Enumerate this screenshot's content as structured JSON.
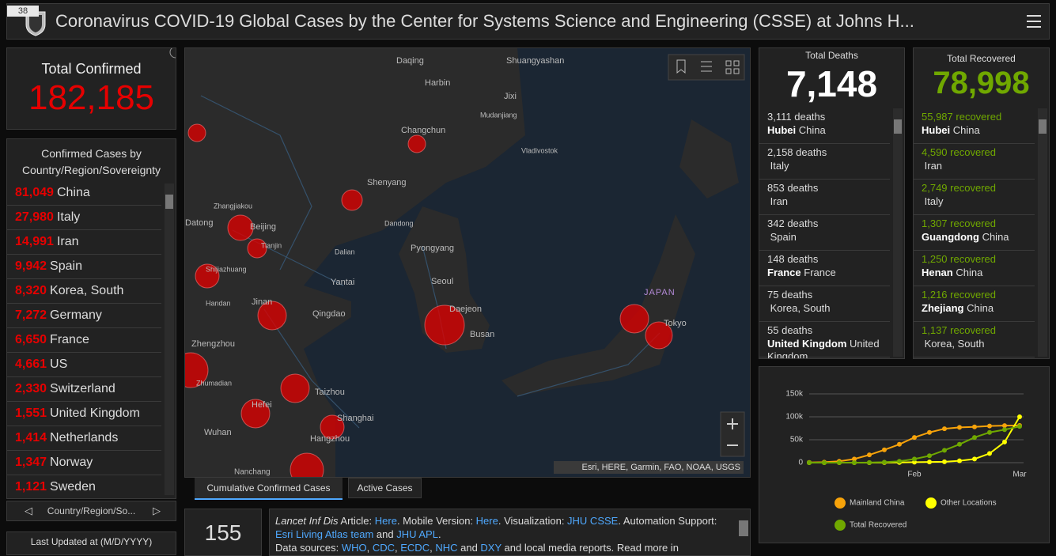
{
  "header": {
    "title": "Coronavirus COVID-19 Global Cases by the Center for Systems Science and Engineering (CSSE) at Johns H...",
    "badge": "38"
  },
  "total_confirmed": {
    "label": "Total Confirmed",
    "value": "182,185"
  },
  "confirmed_list": {
    "title": "Confirmed Cases by Country/Region/Sovereignty",
    "items": [
      {
        "count": "81,049",
        "name": "China"
      },
      {
        "count": "27,980",
        "name": "Italy"
      },
      {
        "count": "14,991",
        "name": "Iran"
      },
      {
        "count": "9,942",
        "name": "Spain"
      },
      {
        "count": "8,320",
        "name": "Korea, South"
      },
      {
        "count": "7,272",
        "name": "Germany"
      },
      {
        "count": "6,650",
        "name": "France"
      },
      {
        "count": "4,661",
        "name": "US"
      },
      {
        "count": "2,330",
        "name": "Switzerland"
      },
      {
        "count": "1,551",
        "name": "United Kingdom"
      },
      {
        "count": "1,414",
        "name": "Netherlands"
      },
      {
        "count": "1,347",
        "name": "Norway"
      },
      {
        "count": "1,121",
        "name": "Sweden"
      }
    ],
    "nav": "Country/Region/So..."
  },
  "last_updated": "Last Updated at (M/D/YYYY)",
  "map": {
    "labels": [
      "Daqing",
      "Shuangyashan",
      "Harbin",
      "Jixi",
      "Mudanjiang",
      "Changchun",
      "Vladivostok",
      "Shenyang",
      "Zhangjiakou",
      "Datong",
      "Beijing",
      "Tianjin",
      "Dandong",
      "Pyongyang",
      "Dalian",
      "Shijiazhuang",
      "Yantai",
      "Seoul",
      "Handan",
      "Jinan",
      "Qingdao",
      "Daejeon",
      "Busan",
      "JAPAN",
      "Tokyo",
      "Zhengzhou",
      "Zhumadian",
      "Taizhou",
      "Hefei",
      "Shanghai",
      "Wuhan",
      "Hangzhou",
      "Nanchang"
    ],
    "attribution": "Esri, HERE, Garmin, FAO, NOAA, USGS"
  },
  "tabs": [
    "Cumulative Confirmed Cases",
    "Active Cases"
  ],
  "countries_count": "155",
  "info": {
    "parts": [
      "Lancet Inf Dis",
      " Article: ",
      "Here",
      ". Mobile Version: ",
      "Here",
      ". Visualization: ",
      "JHU CSSE",
      ". Automation Support: ",
      "Esri Living Atlas team",
      " and ",
      "JHU APL",
      ".",
      "Data sources: ",
      "WHO",
      ", ",
      "CDC",
      ", ",
      "ECDC",
      ", ",
      "NHC",
      " and ",
      "DXY",
      " and local media reports. Read more in"
    ]
  },
  "total_deaths": {
    "label": "Total Deaths",
    "value": "7,148",
    "unit": "deaths",
    "items": [
      {
        "count": "3,111",
        "region": "Hubei",
        "country": "China"
      },
      {
        "count": "2,158",
        "country": "Italy"
      },
      {
        "count": "853",
        "country": "Iran"
      },
      {
        "count": "342",
        "country": "Spain"
      },
      {
        "count": "148",
        "region": "France",
        "country": "France"
      },
      {
        "count": "75",
        "country": "Korea, South"
      },
      {
        "count": "55",
        "region": "United Kingdom",
        "country": "United Kingdom"
      }
    ]
  },
  "total_recovered": {
    "label": "Total Recovered",
    "value": "78,998",
    "unit": "recovered",
    "items": [
      {
        "count": "55,987",
        "region": "Hubei",
        "country": "China"
      },
      {
        "count": "4,590",
        "country": "Iran"
      },
      {
        "count": "2,749",
        "country": "Italy"
      },
      {
        "count": "1,307",
        "region": "Guangdong",
        "country": "China"
      },
      {
        "count": "1,250",
        "region": "Henan",
        "country": "China"
      },
      {
        "count": "1,216",
        "region": "Zhejiang",
        "country": "China"
      },
      {
        "count": "1,137",
        "country": "Korea, South"
      }
    ]
  },
  "chart_data": {
    "type": "line",
    "categories": [
      null,
      null,
      null,
      null,
      null,
      null,
      null,
      "Feb",
      null,
      null,
      null,
      null,
      null,
      null,
      "Mar"
    ],
    "series": [
      {
        "name": "Mainland China",
        "color": "#f7a30a",
        "values": [
          500,
          1000,
          3000,
          8000,
          17000,
          28000,
          40000,
          55000,
          66000,
          74000,
          77000,
          78000,
          80000,
          80800,
          81000
        ]
      },
      {
        "name": "Other Locations",
        "color": "#ffff00",
        "values": [
          0,
          0,
          0,
          0,
          100,
          300,
          500,
          1000,
          1500,
          2000,
          4000,
          8000,
          20000,
          45000,
          100000
        ]
      },
      {
        "name": "Total Recovered",
        "color": "#70a800",
        "values": [
          0,
          0,
          0,
          0,
          300,
          1000,
          3000,
          8000,
          15000,
          27000,
          40000,
          55000,
          66000,
          72000,
          79000
        ]
      }
    ],
    "ylim": [
      0,
      150000
    ],
    "yticks": [
      0,
      {
        "value": 50000,
        "label": "50k"
      },
      {
        "value": 100000,
        "label": "100k"
      },
      {
        "value": 150000,
        "label": "150k"
      }
    ],
    "grid": true
  }
}
